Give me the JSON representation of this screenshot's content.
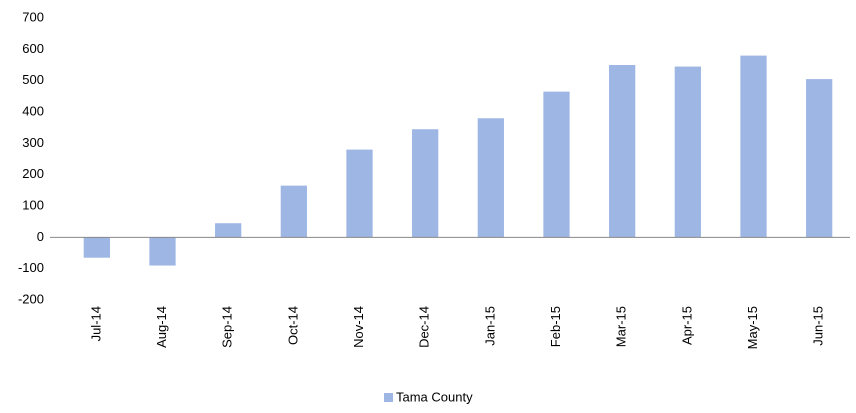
{
  "chart_data": {
    "type": "bar",
    "categories": [
      "Jul-14",
      "Aug-14",
      "Sep-14",
      "Oct-14",
      "Nov-14",
      "Dec-14",
      "Jan-15",
      "Feb-15",
      "Mar-15",
      "Apr-15",
      "May-15",
      "Jun-15"
    ],
    "series": [
      {
        "name": "Tama County",
        "color": "#9db6e3",
        "values": [
          -65,
          -90,
          45,
          165,
          280,
          345,
          380,
          465,
          550,
          545,
          580,
          505
        ]
      }
    ],
    "ylim": [
      -200,
      700
    ],
    "yticks": [
      -200,
      -100,
      0,
      100,
      200,
      300,
      400,
      500,
      600,
      700
    ],
    "grid": false,
    "legend": "bottom"
  }
}
